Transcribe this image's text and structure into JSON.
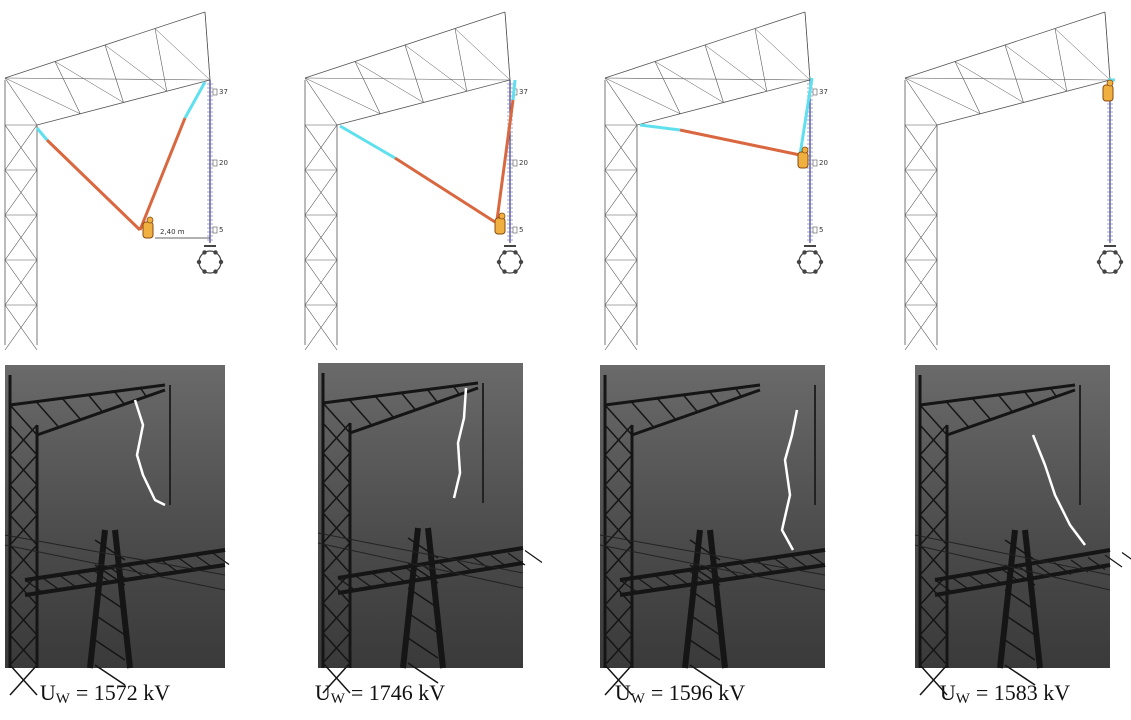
{
  "panels": [
    {
      "scale_labels": [
        "37",
        "20",
        "5"
      ],
      "distance_label": "2,40 m",
      "caption": {
        "symbol": "U",
        "subscript": "W",
        "text": "= 1572 kV"
      }
    },
    {
      "scale_labels": [
        "37",
        "20",
        "5"
      ],
      "caption": {
        "symbol": "U",
        "subscript": "W",
        "text": "= 1746 kV"
      }
    },
    {
      "scale_labels": [
        "37",
        "20",
        "5"
      ],
      "caption": {
        "symbol": "U",
        "subscript": "W",
        "text": "= 1596 kV"
      }
    },
    {
      "caption": {
        "symbol": "U",
        "subscript": "W",
        "text": "= 1583 kV"
      }
    }
  ]
}
